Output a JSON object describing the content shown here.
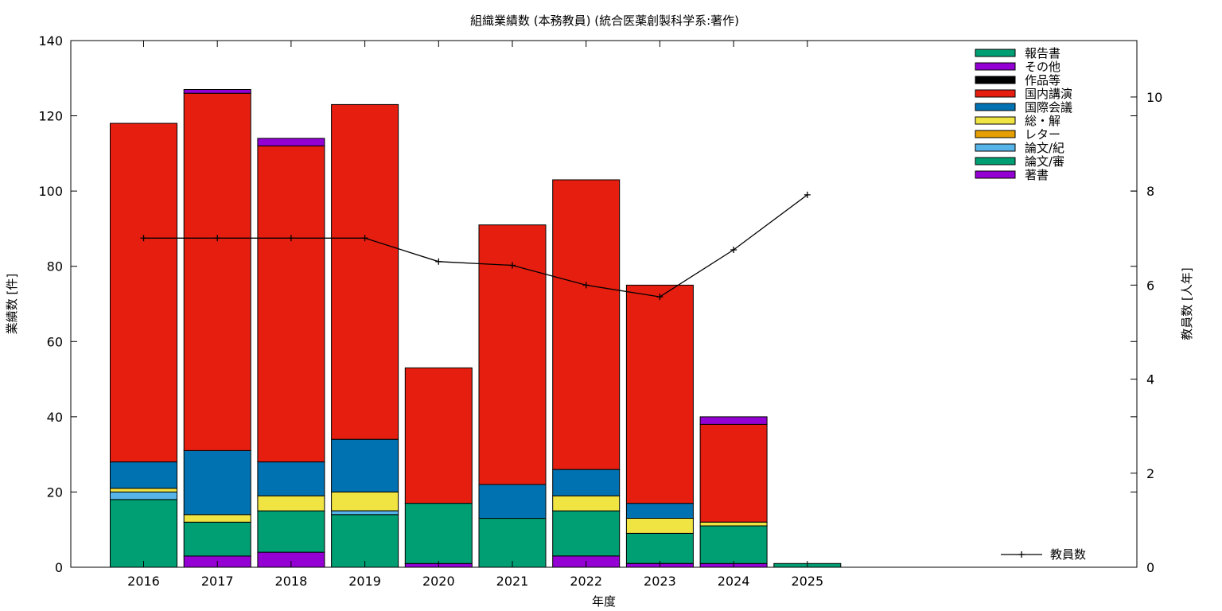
{
  "chart_data": {
    "type": "bar",
    "stacked": true,
    "title": "組織業績数 (本務教員) (統合医薬創製科学系:著作)",
    "xlabel": "年度",
    "ylabel": "業績数 [件]",
    "y2label": "教員数 [人年]",
    "categories": [
      "2016",
      "2017",
      "2018",
      "2019",
      "2020",
      "2021",
      "2022",
      "2023",
      "2024",
      "2025"
    ],
    "ylim": [
      0,
      140
    ],
    "yticks": [
      0,
      20,
      40,
      60,
      80,
      100,
      120,
      140
    ],
    "y2lim": [
      0,
      11.2
    ],
    "y2ticks": [
      0,
      2,
      4,
      6,
      8,
      10
    ],
    "grid": false,
    "legend_position": "top-right",
    "series": [
      {
        "name": "著書",
        "color": "#9400d3",
        "values": [
          0,
          3,
          4,
          0,
          1,
          0,
          3,
          1,
          1,
          0
        ]
      },
      {
        "name": "論文/審",
        "color": "#009e73",
        "values": [
          18,
          9,
          11,
          14,
          16,
          13,
          12,
          8,
          10,
          1
        ]
      },
      {
        "name": "論文/紀",
        "color": "#56b4e9",
        "values": [
          2,
          0,
          0,
          1,
          0,
          0,
          0,
          0,
          0,
          0
        ]
      },
      {
        "name": "レター",
        "color": "#e69f00",
        "values": [
          0,
          0,
          0,
          0,
          0,
          0,
          0,
          0,
          0,
          0
        ]
      },
      {
        "name": "総・解",
        "color": "#f0e442",
        "values": [
          1,
          2,
          4,
          5,
          0,
          0,
          4,
          4,
          1,
          0
        ]
      },
      {
        "name": "国際会議",
        "color": "#0072b2",
        "values": [
          7,
          17,
          9,
          14,
          0,
          9,
          7,
          4,
          0,
          0
        ]
      },
      {
        "name": "国内講演",
        "color": "#e51e10",
        "values": [
          90,
          95,
          84,
          89,
          36,
          69,
          77,
          58,
          26,
          0
        ]
      },
      {
        "name": "作品等",
        "color": "#000000",
        "values": [
          0,
          0,
          0,
          0,
          0,
          0,
          0,
          0,
          0,
          0
        ]
      },
      {
        "name": "その他",
        "color": "#9400d3",
        "values": [
          0,
          1,
          2,
          0,
          0,
          0,
          0,
          0,
          2,
          0
        ]
      },
      {
        "name": "報告書",
        "color": "#009e73",
        "values": [
          0,
          0,
          0,
          0,
          0,
          0,
          0,
          0,
          0,
          0
        ]
      }
    ],
    "line_series": {
      "name": "教員数",
      "axis": "y2",
      "color": "#000000",
      "x": [
        "2016",
        "2017",
        "2018",
        "2019",
        "2020",
        "2021",
        "2022",
        "2023",
        "2024",
        "2025"
      ],
      "values": [
        7.0,
        7.0,
        7.0,
        7.0,
        6.5,
        6.42,
        6.0,
        5.75,
        6.75,
        7.92
      ]
    }
  }
}
